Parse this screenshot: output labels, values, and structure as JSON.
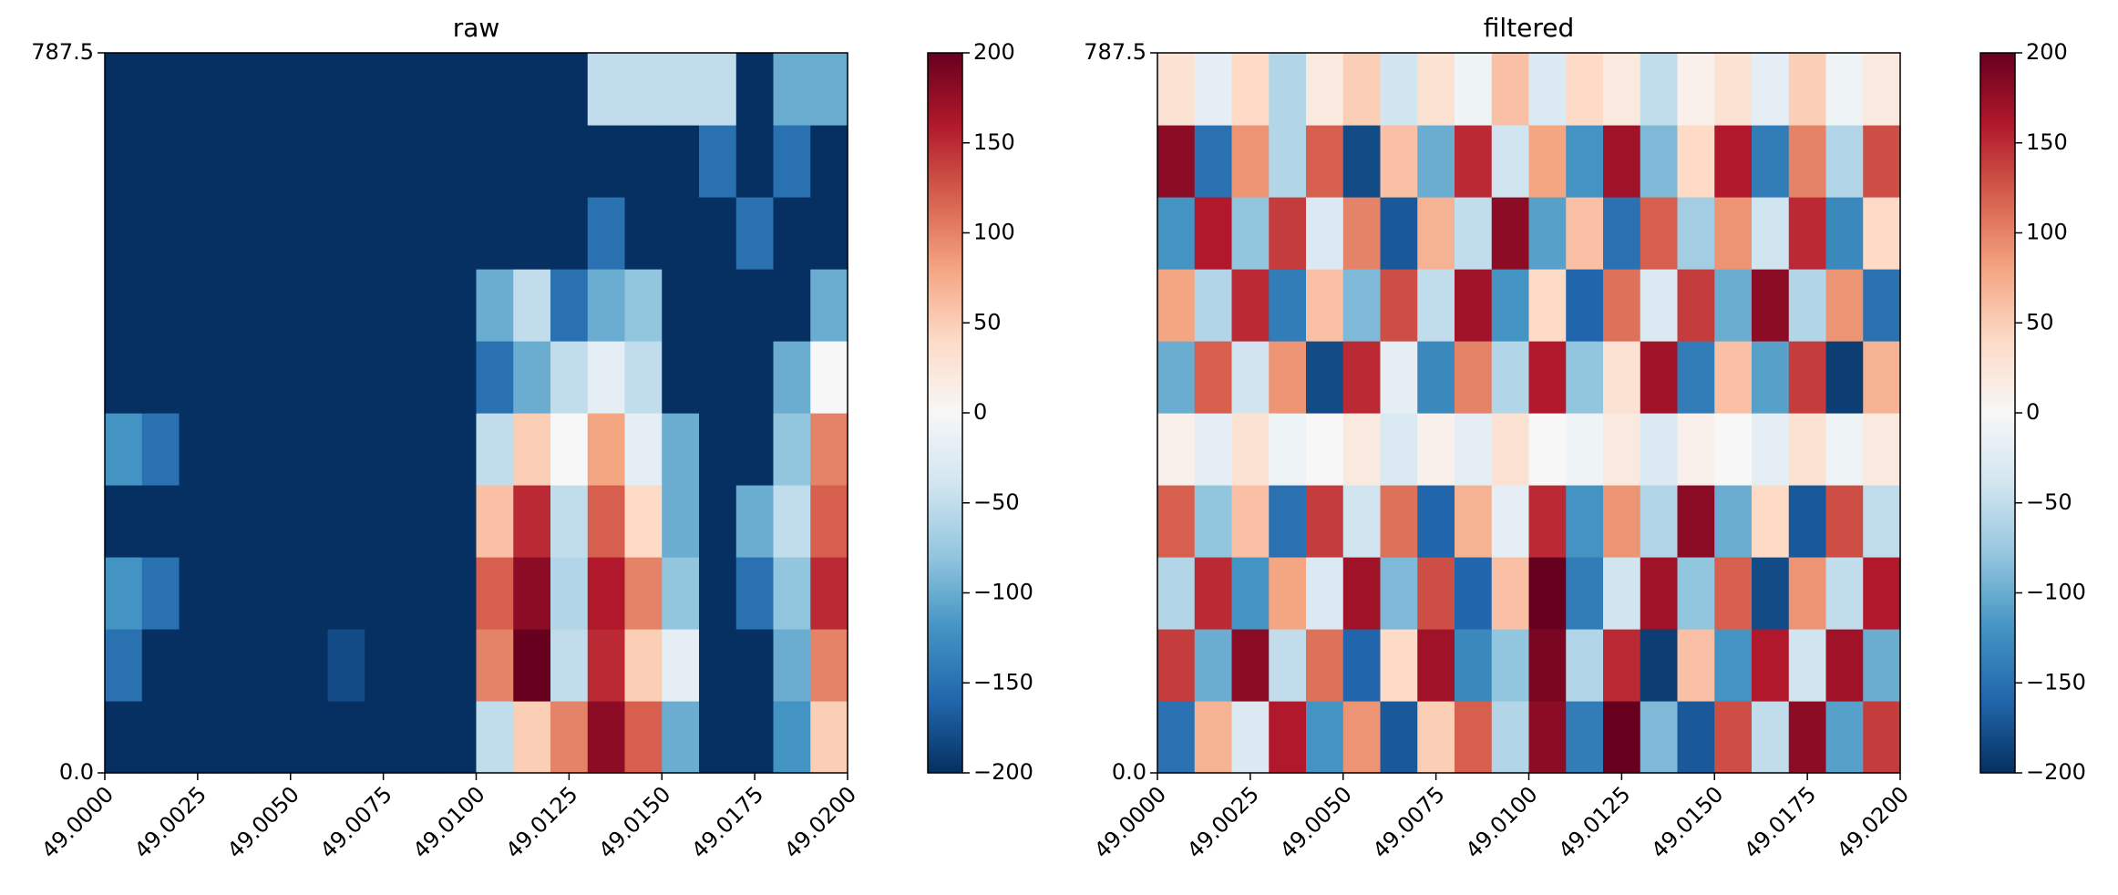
{
  "chart_data": [
    {
      "type": "heatmap",
      "title": "raw",
      "xlim": [
        49.0,
        49.02
      ],
      "xticks": [
        {
          "value": 49.0,
          "label": "49.0000"
        },
        {
          "value": 49.0025,
          "label": "49.0025"
        },
        {
          "value": 49.005,
          "label": "49.0050"
        },
        {
          "value": 49.0075,
          "label": "49.0075"
        },
        {
          "value": 49.01,
          "label": "49.0100"
        },
        {
          "value": 49.0125,
          "label": "49.0125"
        },
        {
          "value": 49.015,
          "label": "49.0150"
        },
        {
          "value": 49.0175,
          "label": "49.0175"
        },
        {
          "value": 49.02,
          "label": "49.0200"
        }
      ],
      "ylim": [
        0,
        787.5
      ],
      "yticks": [
        {
          "value": 0,
          "label": "0.0"
        },
        787.5
      ],
      "clim": [
        -200,
        200
      ],
      "cticks": [
        {
          "value": -200,
          "label": "−200"
        },
        {
          "value": -150,
          "label": "−150"
        },
        {
          "value": -100,
          "label": "−100"
        },
        {
          "value": -50,
          "label": "−50"
        },
        0,
        50,
        100,
        150,
        200
      ],
      "colormap": [
        "#053061",
        "#2166ac",
        "#4393c3",
        "#92c5de",
        "#d1e5f0",
        "#f7f7f7",
        "#fddbc7",
        "#f4a582",
        "#d6604d",
        "#b2182b",
        "#67001f"
      ],
      "z": [
        [
          -200,
          -200,
          -200,
          -200,
          -200,
          -200,
          -200,
          -200,
          -200,
          -200,
          -50,
          50,
          100,
          180,
          120,
          -100,
          -200,
          -200,
          -120,
          50
        ],
        [
          -150,
          -200,
          -200,
          -200,
          -200,
          -200,
          -180,
          -200,
          -200,
          -200,
          100,
          200,
          -50,
          150,
          50,
          -20,
          -200,
          -200,
          -100,
          100
        ],
        [
          -120,
          -150,
          -200,
          -200,
          -200,
          -200,
          -200,
          -200,
          -200,
          -200,
          120,
          180,
          -60,
          160,
          100,
          -80,
          -200,
          -150,
          -80,
          150
        ],
        [
          -200,
          -200,
          -200,
          -200,
          -200,
          -200,
          -200,
          -200,
          -200,
          -200,
          60,
          150,
          -50,
          120,
          40,
          -100,
          -200,
          -100,
          -50,
          120
        ],
        [
          -120,
          -150,
          -200,
          -200,
          -200,
          -200,
          -200,
          -200,
          -200,
          -200,
          -50,
          50,
          0,
          80,
          -20,
          -100,
          -200,
          -200,
          -80,
          100
        ],
        [
          -200,
          -200,
          -200,
          -200,
          -200,
          -200,
          -200,
          -200,
          -200,
          -200,
          -150,
          -100,
          -50,
          -20,
          -50,
          -200,
          -200,
          -200,
          -100,
          0
        ],
        [
          -200,
          -200,
          -200,
          -200,
          -200,
          -200,
          -200,
          -200,
          -200,
          -200,
          -100,
          -50,
          -150,
          -100,
          -80,
          -200,
          -200,
          -200,
          -200,
          -100
        ],
        [
          -200,
          -200,
          -200,
          -200,
          -200,
          -200,
          -200,
          -200,
          -200,
          -200,
          -200,
          -200,
          -200,
          -150,
          -200,
          -200,
          -200,
          -150,
          -200,
          -200
        ],
        [
          -200,
          -200,
          -200,
          -200,
          -200,
          -200,
          -200,
          -200,
          -200,
          -200,
          -200,
          -200,
          -200,
          -200,
          -200,
          -200,
          -150,
          -200,
          -150,
          -200
        ],
        [
          -200,
          -200,
          -200,
          -200,
          -200,
          -200,
          -200,
          -200,
          -200,
          -200,
          -200,
          -200,
          -200,
          -50,
          -50,
          -50,
          -50,
          -200,
          -100,
          -100
        ]
      ]
    },
    {
      "type": "heatmap",
      "title": "filtered",
      "xlim": [
        49.0,
        49.02
      ],
      "xticks": [
        {
          "value": 49.0,
          "label": "49.0000"
        },
        {
          "value": 49.0025,
          "label": "49.0025"
        },
        {
          "value": 49.005,
          "label": "49.0050"
        },
        {
          "value": 49.0075,
          "label": "49.0075"
        },
        {
          "value": 49.01,
          "label": "49.0100"
        },
        {
          "value": 49.0125,
          "label": "49.0125"
        },
        {
          "value": 49.015,
          "label": "49.0150"
        },
        {
          "value": 49.0175,
          "label": "49.0175"
        },
        {
          "value": 49.02,
          "label": "49.0200"
        }
      ],
      "ylim": [
        0,
        787.5
      ],
      "yticks": [
        {
          "value": 0,
          "label": "0.0"
        },
        787.5
      ],
      "clim": [
        -200,
        200
      ],
      "cticks": [
        {
          "value": -200,
          "label": "−200"
        },
        {
          "value": -150,
          "label": "−150"
        },
        {
          "value": -100,
          "label": "−100"
        },
        {
          "value": -50,
          "label": "−50"
        },
        0,
        50,
        100,
        150,
        200
      ],
      "colormap": [
        "#053061",
        "#2166ac",
        "#4393c3",
        "#92c5de",
        "#d1e5f0",
        "#f7f7f7",
        "#fddbc7",
        "#f4a582",
        "#d6604d",
        "#b2182b",
        "#67001f"
      ],
      "z": [
        [
          -150,
          70,
          -30,
          160,
          -120,
          90,
          -170,
          50,
          120,
          -60,
          180,
          -140,
          200,
          -90,
          -170,
          130,
          -50,
          180,
          -110,
          140
        ],
        [
          140,
          -100,
          180,
          -50,
          110,
          -160,
          40,
          170,
          -130,
          -80,
          190,
          -60,
          150,
          -190,
          60,
          -120,
          160,
          -40,
          170,
          -100
        ],
        [
          -60,
          150,
          -120,
          80,
          -30,
          170,
          -90,
          130,
          -160,
          60,
          200,
          -140,
          -40,
          170,
          -80,
          120,
          -180,
          90,
          -50,
          160
        ],
        [
          120,
          -80,
          60,
          -150,
          140,
          -40,
          110,
          -160,
          70,
          -20,
          150,
          -120,
          90,
          -60,
          180,
          -100,
          40,
          -170,
          130,
          -50
        ],
        [
          10,
          -20,
          30,
          -10,
          0,
          20,
          -30,
          10,
          -20,
          30,
          0,
          -10,
          20,
          -30,
          10,
          0,
          -20,
          30,
          -10,
          20
        ],
        [
          -100,
          120,
          -40,
          90,
          -180,
          150,
          -20,
          -130,
          100,
          -60,
          160,
          -80,
          30,
          170,
          -140,
          60,
          -110,
          140,
          -190,
          70
        ],
        [
          80,
          -60,
          150,
          -140,
          60,
          -90,
          130,
          -50,
          170,
          -120,
          40,
          -160,
          110,
          -30,
          140,
          -100,
          180,
          -60,
          90,
          -150
        ],
        [
          -120,
          160,
          -80,
          140,
          -30,
          100,
          -170,
          70,
          -50,
          180,
          -110,
          60,
          -150,
          120,
          -70,
          90,
          -40,
          150,
          -130,
          40
        ],
        [
          180,
          -150,
          90,
          -60,
          120,
          -180,
          60,
          -100,
          150,
          -40,
          80,
          -120,
          170,
          -90,
          40,
          160,
          -140,
          100,
          -60,
          130
        ],
        [
          30,
          -20,
          40,
          -60,
          20,
          50,
          -40,
          30,
          -10,
          60,
          -30,
          40,
          20,
          -50,
          10,
          30,
          -20,
          50,
          -10,
          20
        ]
      ]
    }
  ]
}
